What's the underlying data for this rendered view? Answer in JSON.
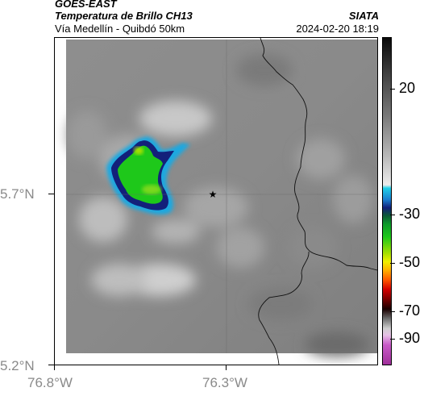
{
  "header": {
    "satellite": "GOES-EAST",
    "product": "Temperatura de Brillo CH13",
    "route": "Vía Medellín - Quibdó 50km",
    "organization": "SIATA",
    "datetime": "2024-02-20 18:19"
  },
  "axes": {
    "lat_labels": [
      "5.7°N",
      "5.2°N"
    ],
    "lon_labels": [
      "76.8°W",
      "76.3°W"
    ]
  },
  "colorbar": {
    "tick_labels": [
      "20",
      "-30",
      "-50",
      "-70",
      "-90"
    ]
  },
  "map": {
    "marker_icon": "star-icon",
    "cold_cloud_colors": [
      "#1fa8e0",
      "#13207a",
      "#1ec81a",
      "#a8e000"
    ]
  }
}
